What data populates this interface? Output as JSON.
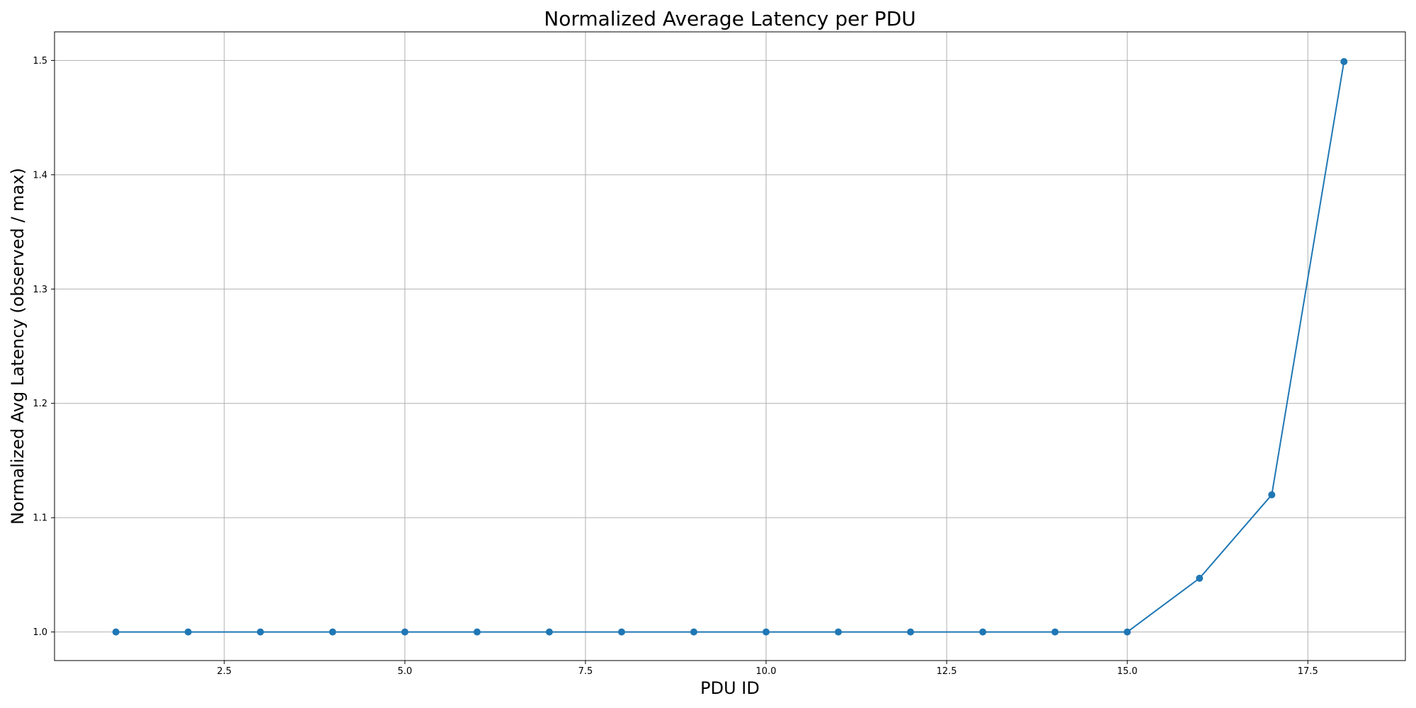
{
  "chart_data": {
    "type": "line",
    "title": "Normalized Average Latency per PDU",
    "xlabel": "PDU ID",
    "ylabel": "Normalized Avg Latency (observed / max)",
    "xlim": [
      0.15,
      18.85
    ],
    "ylim": [
      0.975,
      1.525
    ],
    "xticks": [
      2.5,
      5.0,
      7.5,
      10.0,
      12.5,
      15.0,
      17.5
    ],
    "xtick_labels": [
      "2.5",
      "5.0",
      "7.5",
      "10.0",
      "12.5",
      "15.0",
      "17.5"
    ],
    "yticks": [
      1.0,
      1.1,
      1.2,
      1.3,
      1.4,
      1.5
    ],
    "ytick_labels": [
      "1.0",
      "1.1",
      "1.2",
      "1.3",
      "1.4",
      "1.5"
    ],
    "grid": true,
    "series": [
      {
        "color": "#1f77b4",
        "marker": "circle",
        "x": [
          1,
          2,
          3,
          4,
          5,
          6,
          7,
          8,
          9,
          10,
          11,
          12,
          13,
          14,
          15,
          16,
          17,
          18
        ],
        "y": [
          1.0,
          1.0,
          1.0,
          1.0,
          1.0,
          1.0,
          1.0,
          1.0,
          1.0,
          1.0,
          1.0,
          1.0,
          1.0,
          1.0,
          1.0,
          1.047,
          1.12,
          1.499
        ]
      }
    ]
  }
}
